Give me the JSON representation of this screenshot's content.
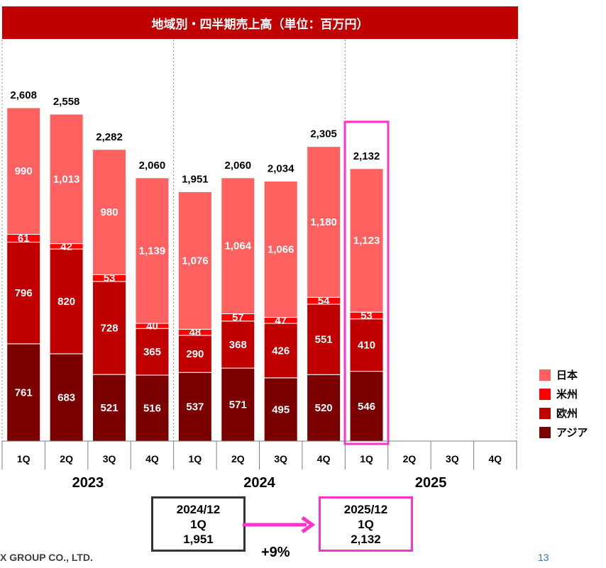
{
  "title": "地域別・四半期売上高（単位：百万円）",
  "colors": {
    "japan": "#ff6161",
    "us": "#ff0000",
    "europe": "#c00000",
    "asia": "#7b0000",
    "title_bg": "#c00000",
    "highlight": "#ff33cc"
  },
  "chart_data": {
    "type": "bar",
    "stacked": true,
    "unit": "百万円",
    "years": [
      "2023",
      "2024",
      "2025"
    ],
    "quarters": [
      "1Q",
      "2Q",
      "3Q",
      "4Q"
    ],
    "categories": [
      "2023 1Q",
      "2023 2Q",
      "2023 3Q",
      "2023 4Q",
      "2024 1Q",
      "2024 2Q",
      "2024 3Q",
      "2024 4Q",
      "2025 1Q",
      "2025 2Q",
      "2025 3Q",
      "2025 4Q"
    ],
    "series": [
      {
        "name": "アジア",
        "key": "asia",
        "values": [
          761,
          683,
          521,
          516,
          537,
          571,
          495,
          520,
          546,
          null,
          null,
          null
        ]
      },
      {
        "name": "欧州",
        "key": "europe",
        "values": [
          796,
          820,
          728,
          365,
          290,
          368,
          426,
          551,
          410,
          null,
          null,
          null
        ]
      },
      {
        "name": "米州",
        "key": "us",
        "values": [
          61,
          42,
          53,
          40,
          48,
          57,
          47,
          54,
          53,
          null,
          null,
          null
        ]
      },
      {
        "name": "日本",
        "key": "japan",
        "values": [
          990,
          1013,
          980,
          1139,
          1076,
          1064,
          1066,
          1180,
          1123,
          null,
          null,
          null
        ]
      }
    ],
    "totals": [
      "2,608",
      "2,558",
      "2,282",
      "2,060",
      "1,951",
      "2,060",
      "2,034",
      "2,305",
      "2,132",
      null,
      null,
      null
    ],
    "highlighted_index": 8,
    "legend_position": "right"
  },
  "comparison": {
    "before": {
      "period": "2024/12",
      "quarter": "1Q",
      "value": "1,951"
    },
    "after": {
      "period": "2025/12",
      "quarter": "1Q",
      "value": "2,132"
    },
    "growth": "+9%"
  },
  "footer": {
    "company": "X GROUP CO., LTD.",
    "page": "13"
  }
}
